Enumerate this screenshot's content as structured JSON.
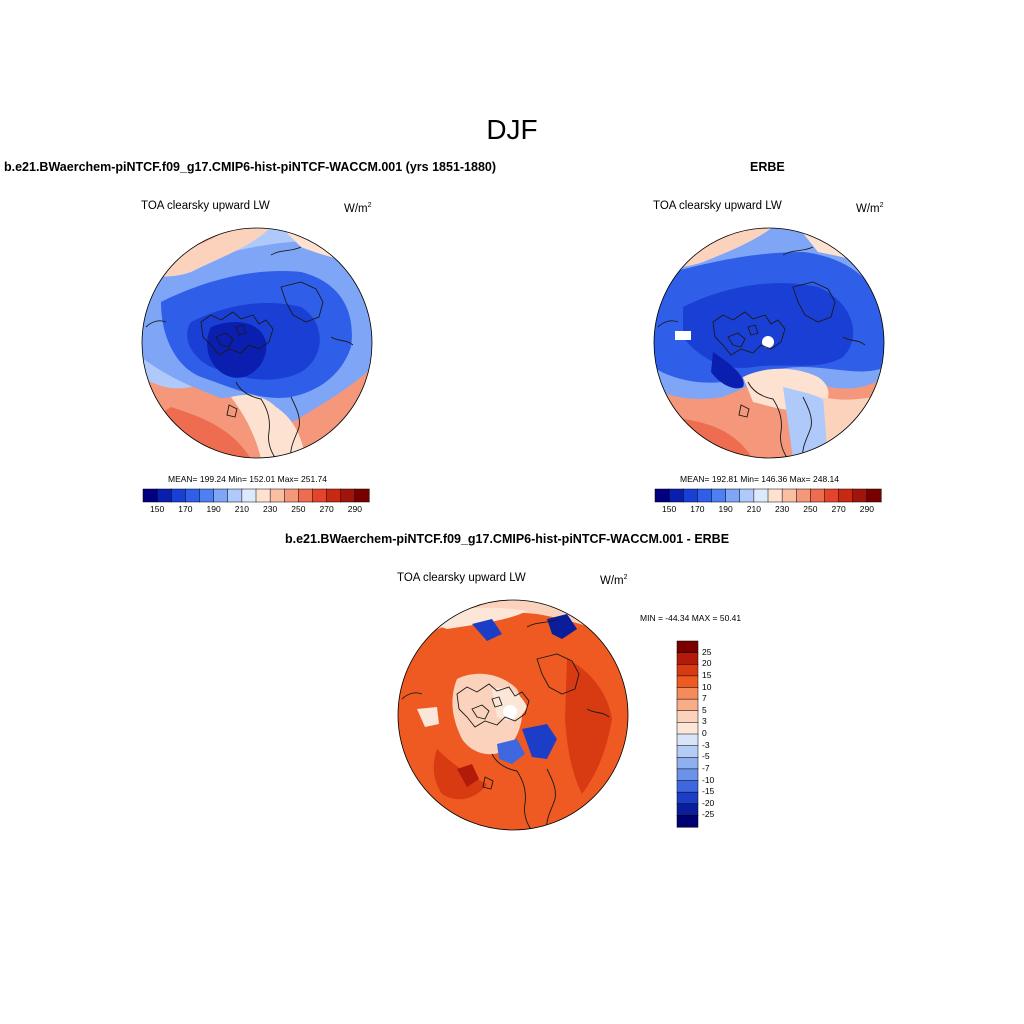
{
  "page": {
    "title": "DJF"
  },
  "panels": {
    "model": {
      "title": "b.e21.BWaerchem-piNTCF.f09_g17.CMIP6-hist-piNTCF-WACCM.001 (yrs 1851-1880)",
      "variable": "TOA clearsky upward LW",
      "units": "W/m",
      "units_exp": "2",
      "stats": "MEAN= 199.24  Min= 152.01  Max= 251.74",
      "colorbar_ticks": [
        "150",
        "170",
        "190",
        "210",
        "230",
        "250",
        "270",
        "290"
      ]
    },
    "obs": {
      "title": "ERBE",
      "variable": "TOA clearsky upward LW",
      "units": "W/m",
      "units_exp": "2",
      "stats": "MEAN= 192.81  Min= 146.36  Max= 248.14",
      "colorbar_ticks": [
        "150",
        "170",
        "190",
        "210",
        "230",
        "250",
        "270",
        "290"
      ]
    },
    "diff": {
      "title": "b.e21.BWaerchem-piNTCF.f09_g17.CMIP6-hist-piNTCF-WACCM.001 - ERBE",
      "variable": "TOA clearsky upward LW",
      "units": "W/m",
      "units_exp": "2",
      "stats": "MIN = -44.34 MAX =  50.41",
      "colorbar_ticks": [
        "25",
        "20",
        "15",
        "10",
        "7",
        "5",
        "3",
        "0",
        "-3",
        "-5",
        "-7",
        "-10",
        "-15",
        "-20",
        "-25"
      ]
    }
  },
  "colors": {
    "abs_scale": [
      "#000080",
      "#0a1fb0",
      "#1a3fd4",
      "#2f5fe8",
      "#4f7ff0",
      "#7fa5f6",
      "#afc9fa",
      "#dceafc",
      "#fde2d2",
      "#f9bfa3",
      "#f4977a",
      "#ee6c4f",
      "#e2452a",
      "#c82814",
      "#a0140a",
      "#780000"
    ],
    "diff_scale": [
      "#7a0000",
      "#b21a0a",
      "#d83a12",
      "#ee5a22",
      "#f58a5a",
      "#f8ad88",
      "#fbd3bd",
      "#fbe6d8",
      "#d8e4f8",
      "#b5cdf4",
      "#8fb0ef",
      "#6a92ea",
      "#3f67df",
      "#1c3ec6",
      "#0a1d9a",
      "#000070"
    ],
    "coastline": "#1a1a1a"
  }
}
